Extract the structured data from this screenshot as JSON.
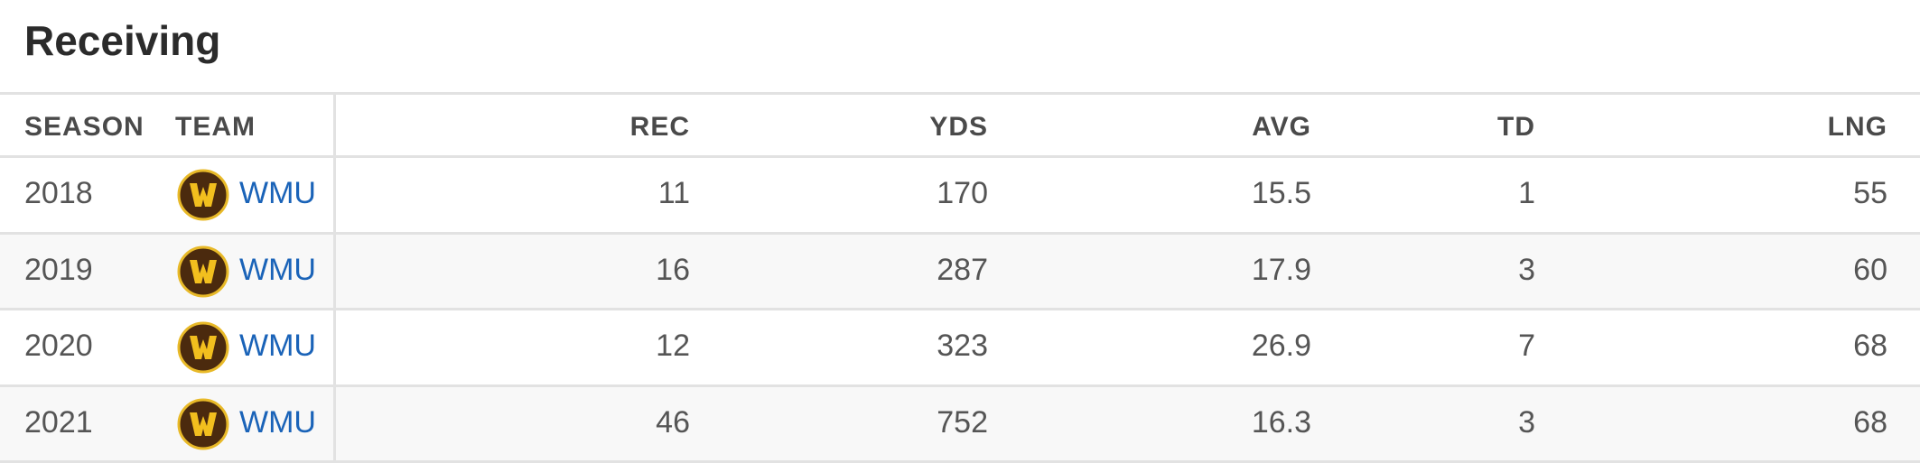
{
  "title": "Receiving",
  "table": {
    "columns": [
      "SEASON",
      "TEAM",
      "REC",
      "YDS",
      "AVG",
      "TD",
      "LNG"
    ],
    "rows": [
      [
        2018,
        "WMU",
        11,
        170,
        15.5,
        1,
        55
      ],
      [
        2019,
        "WMU",
        16,
        287,
        17.9,
        3,
        60
      ],
      [
        2020,
        "WMU",
        12,
        323,
        26.9,
        7,
        68
      ],
      [
        2021,
        "WMU",
        46,
        752,
        16.3,
        3,
        68
      ]
    ]
  }
}
